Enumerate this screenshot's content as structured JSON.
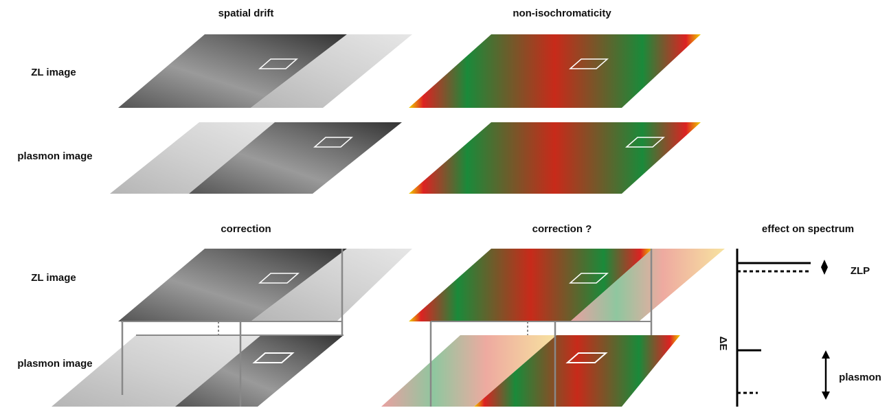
{
  "top": {
    "col1_title": "spatial drift",
    "col2_title": "non-isochromaticity",
    "rows": [
      "ZL image",
      "plasmon image"
    ]
  },
  "bottom": {
    "col1_title": "correction",
    "col2_title": "correction ?",
    "col3_title": "effect on spectrum",
    "rows": [
      "ZL image",
      "plasmon image"
    ]
  },
  "spectrum": {
    "axis_label": "ΔE",
    "zlp": "ZLP",
    "plasmon": "plasmon"
  }
}
